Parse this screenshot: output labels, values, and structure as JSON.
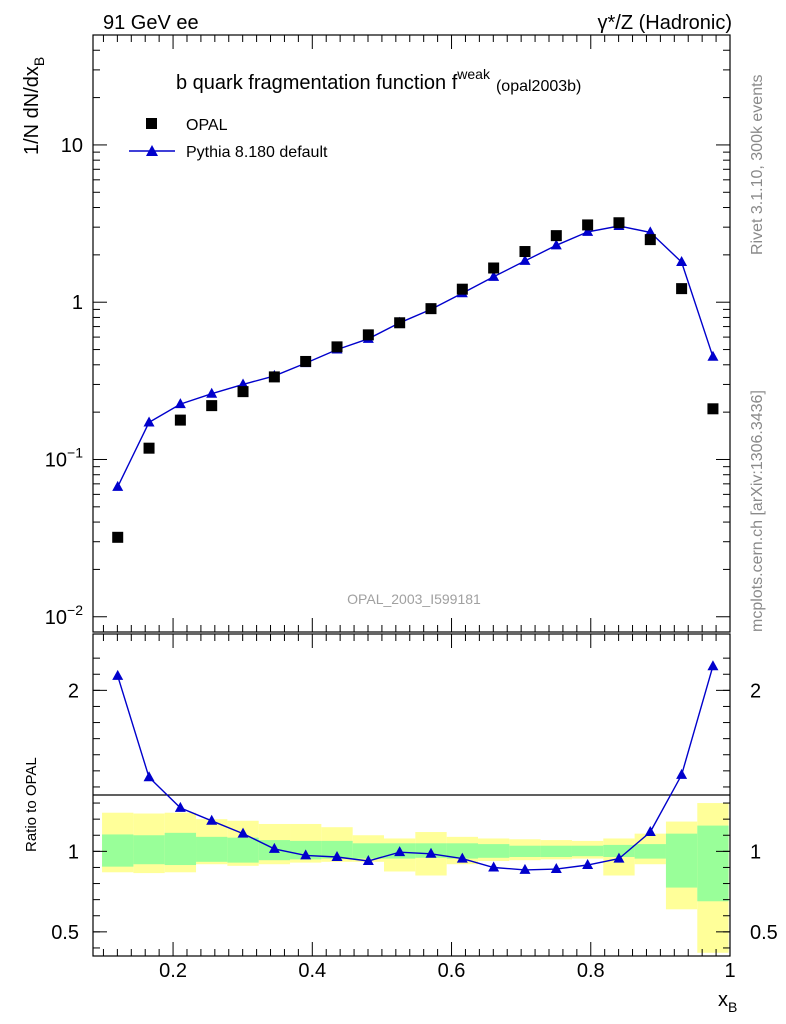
{
  "header": {
    "left": "91 GeV ee",
    "right": "γ*/Z (Hadronic)"
  },
  "side_labels": {
    "rivet": "Rivet 3.1.10,  300k events",
    "source": "mcplots.cern.ch [arXiv:1306.3436]"
  },
  "chart_data": [
    {
      "type": "scatter",
      "title": "b quark fragmentation function f",
      "title_superscript": "weak",
      "title_suffix": "(opal2003b)",
      "watermark": "OPAL_2003_I599181",
      "ylabel": "1/N dN/dx",
      "ylabel_sub": "B",
      "yscale": "log",
      "ylim": [
        0.008,
        50
      ],
      "xlim": [
        0.085,
        1.0
      ],
      "yticklabels": [
        "10",
        "1"
      ],
      "ytick_exp_labels": [
        {
          "base": "10",
          "exp": "−1"
        },
        {
          "base": "10",
          "exp": "−2"
        }
      ],
      "x": [
        0.1205,
        0.1655,
        0.2105,
        0.2555,
        0.3005,
        0.3455,
        0.3905,
        0.4355,
        0.4805,
        0.5255,
        0.5705,
        0.6155,
        0.6605,
        0.7055,
        0.7505,
        0.7955,
        0.8405,
        0.8855,
        0.9305,
        0.9755
      ],
      "series": [
        {
          "name": "OPAL",
          "color": "#000000",
          "marker": "square",
          "values": [
            0.032,
            0.118,
            0.178,
            0.22,
            0.27,
            0.335,
            0.42,
            0.52,
            0.62,
            0.74,
            0.91,
            1.21,
            1.65,
            2.1,
            2.65,
            3.1,
            3.2,
            2.5,
            1.22,
            0.21
          ]
        },
        {
          "name": "Pythia 8.180 default",
          "color": "#0000cc",
          "marker": "triangle",
          "line": true,
          "values": [
            0.067,
            0.172,
            0.225,
            0.262,
            0.3,
            0.34,
            0.41,
            0.5,
            0.585,
            0.74,
            0.9,
            1.14,
            1.45,
            1.83,
            2.3,
            2.8,
            3.05,
            2.78,
            1.8,
            0.45
          ]
        }
      ]
    },
    {
      "type": "line",
      "ylabel": "Ratio to OPAL",
      "xlabel": "x",
      "xlabel_sub": "B",
      "ylim": [
        0.35,
        2.35
      ],
      "xlim": [
        0.085,
        1.0
      ],
      "xticklabels": [
        "0.2",
        "0.4",
        "0.6",
        "0.8",
        "1"
      ],
      "yticklabels": [
        "2",
        "1",
        "0.5"
      ],
      "x": [
        0.1205,
        0.1655,
        0.2105,
        0.2555,
        0.3005,
        0.3455,
        0.3905,
        0.4355,
        0.4805,
        0.5255,
        0.5705,
        0.6155,
        0.6605,
        0.7055,
        0.7505,
        0.7955,
        0.8405,
        0.8855,
        0.9305,
        0.9755
      ],
      "series": [
        {
          "name": "Pythia 8.180 default",
          "color": "#0000cc",
          "values": [
            2.09,
            1.46,
            1.27,
            1.19,
            1.11,
            1.015,
            0.975,
            0.965,
            0.94,
            0.995,
            0.985,
            0.955,
            0.9,
            0.885,
            0.89,
            0.915,
            0.955,
            1.12,
            1.475,
            2.15
          ]
        }
      ],
      "stat_band": {
        "color": "#99ff99",
        "lo": [
          0.905,
          0.92,
          0.915,
          0.935,
          0.93,
          0.945,
          0.95,
          0.955,
          0.955,
          0.955,
          0.96,
          0.955,
          0.96,
          0.965,
          0.965,
          0.97,
          0.965,
          0.955,
          0.775,
          0.69
        ],
        "hi": [
          1.105,
          1.1,
          1.115,
          1.09,
          1.085,
          1.07,
          1.065,
          1.065,
          1.05,
          1.05,
          1.05,
          1.05,
          1.045,
          1.035,
          1.035,
          1.035,
          1.04,
          1.045,
          1.11,
          1.16
        ]
      },
      "total_band": {
        "color": "#ffff99",
        "lo": [
          0.87,
          0.865,
          0.87,
          0.92,
          0.91,
          0.92,
          0.93,
          0.935,
          0.935,
          0.875,
          0.85,
          0.92,
          0.94,
          0.945,
          0.95,
          0.955,
          0.85,
          0.92,
          0.64,
          0.37
        ],
        "hi": [
          1.24,
          1.235,
          1.24,
          1.2,
          1.19,
          1.17,
          1.17,
          1.15,
          1.1,
          1.08,
          1.12,
          1.09,
          1.08,
          1.075,
          1.07,
          1.065,
          1.08,
          1.11,
          1.185,
          1.3
        ]
      }
    }
  ]
}
